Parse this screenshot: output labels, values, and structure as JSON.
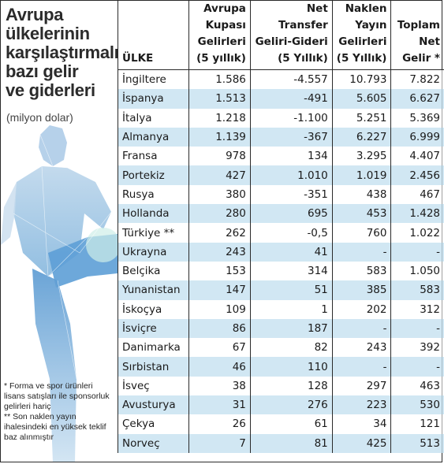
{
  "title_lines": [
    "Avrupa",
    "ülkelerinin",
    "karşılaştırmalı",
    "bazı gelir",
    "ve giderleri"
  ],
  "subtitle": "(milyon dolar)",
  "footnotes": [
    "* Forma ve spor ürünleri lisans satışları ile sponsorluk gelirleri hariç",
    "** Son naklen yayın ihalesindeki en yüksek teklif baz alınmıştır"
  ],
  "colors": {
    "row_shade": "#c4e0f0",
    "figure": "#6fa8d6",
    "border": "#2a2a2a"
  },
  "chart_data": {
    "type": "table",
    "columns": [
      {
        "lines": [
          "ÜLKE"
        ]
      },
      {
        "lines": [
          "Avrupa",
          "Kupası",
          "Gelirleri",
          "(5 yıllık)"
        ]
      },
      {
        "lines": [
          "Net",
          "Transfer",
          "Geliri-Gideri",
          "(5 Yıllık)"
        ]
      },
      {
        "lines": [
          "Naklen",
          "Yayın",
          "Gelirleri",
          "(5 Yıllık)"
        ]
      },
      {
        "lines": [
          "Toplam",
          "Net",
          "Gelir *"
        ]
      }
    ],
    "rows": [
      [
        "İngiltere",
        "1.586",
        "-4.557",
        "10.793",
        "7.822"
      ],
      [
        "İspanya",
        "1.513",
        "-491",
        "5.605",
        "6.627"
      ],
      [
        "İtalya",
        "1.218",
        "-1.100",
        "5.251",
        "5.369"
      ],
      [
        "Almanya",
        "1.139",
        "-367",
        "6.227",
        "6.999"
      ],
      [
        "Fransa",
        "978",
        "134",
        "3.295",
        "4.407"
      ],
      [
        "Portekiz",
        "427",
        "1.010",
        "1.019",
        "2.456"
      ],
      [
        "Rusya",
        "380",
        "-351",
        "438",
        "467"
      ],
      [
        "Hollanda",
        "280",
        "695",
        "453",
        "1.428"
      ],
      [
        "Türkiye **",
        "262",
        "-0,5",
        "760",
        "1.022"
      ],
      [
        "Ukrayna",
        "243",
        "41",
        "-",
        "-"
      ],
      [
        "Belçika",
        "153",
        "314",
        "583",
        "1.050"
      ],
      [
        "Yunanistan",
        "147",
        "51",
        "385",
        "583"
      ],
      [
        "İskoçya",
        "109",
        "1",
        "202",
        "312"
      ],
      [
        "İsviçre",
        "86",
        "187",
        "-",
        "-"
      ],
      [
        "Danimarka",
        "67",
        "82",
        "243",
        "392"
      ],
      [
        "Sırbistan",
        "46",
        "110",
        "-",
        "-"
      ],
      [
        "İsveç",
        "38",
        "128",
        "297",
        "463"
      ],
      [
        "Avusturya",
        "31",
        "276",
        "223",
        "530"
      ],
      [
        "Çekya",
        "26",
        "61",
        "34",
        "121"
      ],
      [
        "Norveç",
        "7",
        "81",
        "425",
        "513"
      ]
    ]
  }
}
